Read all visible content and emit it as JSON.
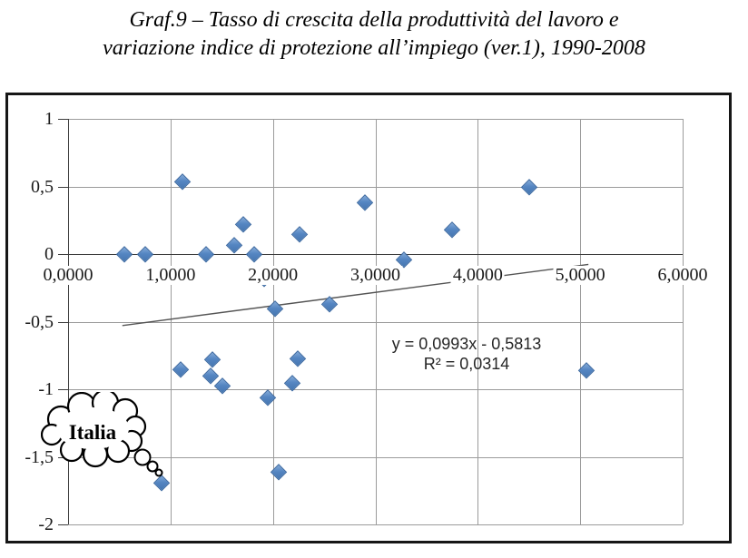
{
  "title": {
    "line1": "Graf.9 – Tasso di crescita della  produttività del lavoro e",
    "line2": "variazione indice di protezione all’impiego (ver.1), 1990-2008"
  },
  "chart_data": {
    "type": "scatter",
    "title": "Graf.9 – Tasso di crescita della produttività del lavoro e variazione indice di protezione all’impiego (ver.1), 1990-2008",
    "xlabel": "",
    "ylabel": "",
    "x_axis": {
      "range": [
        0,
        6
      ],
      "tick_values": [
        0,
        1,
        2,
        3,
        4,
        5,
        6
      ],
      "tick_labels": [
        "0,0000",
        "1,0000",
        "2,0000",
        "3,0000",
        "4,0000",
        "5,0000",
        "6,0000"
      ]
    },
    "y_axis": {
      "range": [
        -2,
        1
      ],
      "tick_values": [
        1,
        0.5,
        0,
        -0.5,
        -1,
        -1.5,
        -2
      ],
      "tick_labels": [
        "1",
        "0,5",
        "0",
        "-0,5",
        "-1",
        "-1,5",
        "-2"
      ]
    },
    "grid": true,
    "legend": false,
    "points": [
      [
        0.55,
        0.0
      ],
      [
        0.75,
        0.0
      ],
      [
        1.12,
        0.54
      ],
      [
        1.35,
        0.0
      ],
      [
        1.62,
        0.07
      ],
      [
        1.71,
        0.22
      ],
      [
        1.82,
        0.0
      ],
      [
        1.91,
        -0.18
      ],
      [
        2.02,
        -0.4
      ],
      [
        2.26,
        0.15
      ],
      [
        2.55,
        -0.37
      ],
      [
        2.9,
        0.38
      ],
      [
        3.28,
        -0.04
      ],
      [
        3.75,
        0.18
      ],
      [
        4.5,
        0.5
      ],
      [
        1.1,
        -0.85
      ],
      [
        1.39,
        -0.9
      ],
      [
        1.41,
        -0.78
      ],
      [
        1.51,
        -0.97
      ],
      [
        1.95,
        -1.06
      ],
      [
        2.19,
        -0.95
      ],
      [
        2.24,
        -0.77
      ],
      [
        2.06,
        -1.61
      ],
      [
        0.91,
        -1.69
      ],
      [
        5.06,
        -0.86
      ]
    ],
    "trendline": {
      "slope": 0.0993,
      "intercept": -0.5813,
      "x_start": 0.53,
      "x_end": 5.08,
      "equation_label": "y = 0,0993x - 0,5813",
      "r2_label": "R² = 0,0314"
    },
    "annotation": {
      "text": "Italia",
      "target_point": [
        0.91,
        -1.69
      ]
    },
    "colors": {
      "marker": "#5586c2",
      "marker_border": "#3b68a0",
      "gridline": "#9b9b9b",
      "axis": "#3c3c3c",
      "trendline": "#555555"
    }
  }
}
